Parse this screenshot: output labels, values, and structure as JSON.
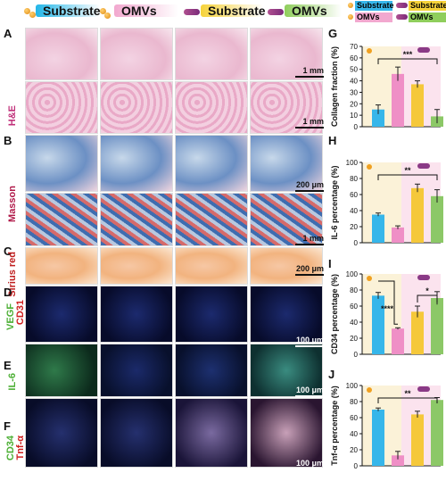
{
  "header": {
    "groups": [
      {
        "label": "Substrate",
        "color": "#22b6e8"
      },
      {
        "label": "OMVs",
        "color": "#f2a8cf"
      },
      {
        "label": "Substrate",
        "color": "#f6d23a"
      },
      {
        "label": "OMVs",
        "color": "#8fce5c"
      }
    ]
  },
  "legend": {
    "items": [
      "Substrate",
      "Substrate",
      "OMVs",
      "OMVs"
    ]
  },
  "rows": [
    {
      "letter": "A",
      "stain": "H&E"
    },
    {
      "letter": "B",
      "stain": "Masson"
    },
    {
      "letter": "C",
      "stain": "Sirius red"
    },
    {
      "letter": "D",
      "stain_top": "VEGF",
      "stain_bottom": "CD31"
    },
    {
      "letter": "E",
      "stain": "IL-6"
    },
    {
      "letter": "F",
      "stain_top": "CD34",
      "stain_bottom": "Tnf-α"
    }
  ],
  "scales": {
    "a1": "1 mm",
    "a2": "1 mm",
    "b1": "200 μm",
    "b2": "1 mm",
    "c": "200 μm",
    "d": "100 μm",
    "e": "100 μm",
    "f": "100 μm"
  },
  "colors": {
    "substrate_blue": "#36b6ea",
    "omvs_pink": "#ef8fc6",
    "substrate_yellow": "#f5c83a",
    "omvs_green": "#8cc867"
  },
  "chart_data": [
    {
      "panel": "G",
      "type": "bar",
      "categories": [
        "",
        "",
        "",
        ""
      ],
      "values": [
        15,
        46,
        37,
        9
      ],
      "errors": [
        4,
        6,
        3,
        6
      ],
      "ylabel": "Collagen fraction (%)",
      "ylim": [
        0,
        70
      ],
      "yticks": [
        "0",
        "10",
        "20",
        "30",
        "40",
        "50",
        "60",
        "70"
      ],
      "significance": "***"
    },
    {
      "panel": "H",
      "type": "bar",
      "categories": [
        "",
        "",
        "",
        ""
      ],
      "values": [
        35,
        19,
        68,
        58
      ],
      "errors": [
        2,
        2,
        5,
        8
      ],
      "ylabel": "IL-6 percentage (%)",
      "ylim": [
        0,
        100
      ],
      "yticks": [
        "0",
        "20",
        "40",
        "60",
        "80",
        "100"
      ],
      "significance": "**"
    },
    {
      "panel": "I",
      "type": "bar",
      "categories": [
        "",
        "",
        "",
        ""
      ],
      "values": [
        73,
        32,
        53,
        70
      ],
      "errors": [
        4,
        1,
        7,
        8
      ],
      "ylabel": "CD34 percentage (%)",
      "ylim": [
        0,
        100
      ],
      "yticks": [
        "0",
        "20",
        "40",
        "60",
        "80",
        "100"
      ],
      "significance_left": "****",
      "significance_right": "*"
    },
    {
      "panel": "J",
      "type": "bar",
      "categories": [
        "",
        "",
        "",
        ""
      ],
      "values": [
        70,
        13,
        64,
        82
      ],
      "errors": [
        2,
        5,
        4,
        3
      ],
      "ylabel": "Tnf-α percentage (%)",
      "ylim": [
        0,
        100
      ],
      "yticks": [
        "0",
        "20",
        "40",
        "60",
        "80",
        "100"
      ],
      "significance": "**"
    }
  ]
}
